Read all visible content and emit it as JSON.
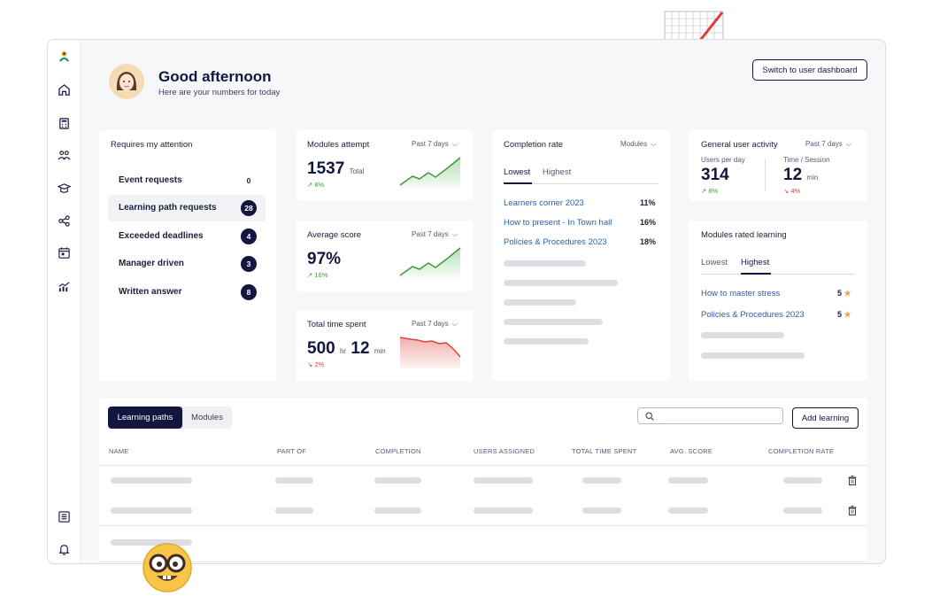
{
  "colors": {
    "navy": "#121640",
    "green": "#3f9a3a",
    "red": "#d9433a",
    "link": "#2a5fa8",
    "star": "#f0a43a"
  },
  "header": {
    "greeting": "Good afternoon",
    "subtitle": "Here are your numbers for today",
    "switch_button": "Switch to user dashboard"
  },
  "sidebar": {
    "items": [
      {
        "icon": "logo-icon"
      },
      {
        "icon": "home-icon"
      },
      {
        "icon": "calculator-icon"
      },
      {
        "icon": "users-icon"
      },
      {
        "icon": "graduation-cap-icon"
      },
      {
        "icon": "share-icon"
      },
      {
        "icon": "calendar-icon"
      },
      {
        "icon": "analytics-icon"
      },
      {
        "icon": "reports-icon"
      },
      {
        "icon": "bell-icon"
      }
    ]
  },
  "attention": {
    "title": "Requires my attention",
    "items": [
      {
        "label": "Event requests",
        "count": "0"
      },
      {
        "label": "Learning path requests",
        "count": "28"
      },
      {
        "label": "Exceeded deadlines",
        "count": "4"
      },
      {
        "label": "Manager driven",
        "count": "3"
      },
      {
        "label": "Written answer",
        "count": "8"
      }
    ]
  },
  "modules_attempt": {
    "title": "Modules attempt",
    "period": "Past 7 days",
    "value": "1537",
    "unit": "Total",
    "delta": "8%",
    "trend": "up"
  },
  "average_score": {
    "title": "Average score",
    "period": "Past 7 days",
    "value": "97%",
    "delta": "16%",
    "trend": "up"
  },
  "total_time": {
    "title": "Total time spent",
    "period": "Past 7 days",
    "hours": "500",
    "hours_unit": "hr",
    "minutes": "12",
    "minutes_unit": "min",
    "delta": "2%",
    "trend": "down"
  },
  "completion_rate": {
    "title": "Completion rate",
    "filter": "Modules",
    "tabs": [
      "Lowest",
      "Highest"
    ],
    "active_tab": "Lowest",
    "rows": [
      {
        "name": "Learners corner 2023",
        "value": "11%"
      },
      {
        "name": "How to present - In Town hall",
        "value": "16%"
      },
      {
        "name": "Policies & Procedures 2023",
        "value": "18%"
      }
    ]
  },
  "general_activity": {
    "title": "General user activity",
    "period": "Past 7 days",
    "users_label": "Users per day",
    "users_value": "314",
    "users_delta": "8%",
    "time_label": "Time / Session",
    "time_value": "12",
    "time_unit": "min",
    "time_delta": "4%"
  },
  "modules_rated": {
    "title": "Modules rated learning",
    "tabs": [
      "Lowest",
      "Highest"
    ],
    "active_tab": "Highest",
    "rows": [
      {
        "name": "How to master stress",
        "rating": "5"
      },
      {
        "name": "Policies & Procedures 2023",
        "rating": "5"
      }
    ]
  },
  "table": {
    "tabs": [
      "Learning paths",
      "Modules"
    ],
    "active_tab": "Learning paths",
    "search_placeholder": "",
    "add_button": "Add learning",
    "columns": [
      "NAME",
      "PART OF",
      "COMPLETION",
      "USERS ASSIGNED",
      "TOTAL TIME SPENT",
      "AVG. SCORE",
      "COMPLETION RATE"
    ]
  }
}
